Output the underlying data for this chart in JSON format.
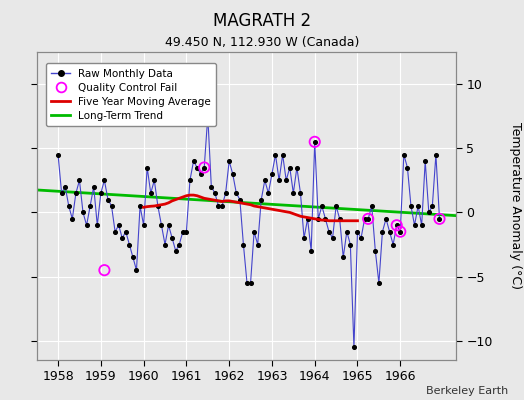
{
  "title": "MAGRATH 2",
  "subtitle": "49.450 N, 112.930 W (Canada)",
  "credit": "Berkeley Earth",
  "ylabel": "Temperature Anomaly (°C)",
  "xlim": [
    1957.5,
    1967.3
  ],
  "ylim": [
    -11.5,
    12.5
  ],
  "yticks": [
    -10,
    -5,
    0,
    5,
    10
  ],
  "xticks": [
    1958,
    1959,
    1960,
    1961,
    1962,
    1963,
    1964,
    1965,
    1966
  ],
  "bg_color": "#e8e8e8",
  "plot_bg_color": "#e8e8e8",
  "raw_color": "#4444cc",
  "dot_color": "#000000",
  "ma_color": "#dd0000",
  "trend_color": "#00bb00",
  "qc_color": "#ff00ff",
  "grid_color": "#ffffff",
  "raw_data_x": [
    1958.0,
    1958.083,
    1958.167,
    1958.25,
    1958.333,
    1958.417,
    1958.5,
    1958.583,
    1958.667,
    1958.75,
    1958.833,
    1958.917,
    1959.0,
    1959.083,
    1959.167,
    1959.25,
    1959.333,
    1959.417,
    1959.5,
    1959.583,
    1959.667,
    1959.75,
    1959.833,
    1959.917,
    1960.0,
    1960.083,
    1960.167,
    1960.25,
    1960.333,
    1960.417,
    1960.5,
    1960.583,
    1960.667,
    1960.75,
    1960.833,
    1960.917,
    1961.0,
    1961.083,
    1961.167,
    1961.25,
    1961.333,
    1961.417,
    1961.5,
    1961.583,
    1961.667,
    1961.75,
    1961.833,
    1961.917,
    1962.0,
    1962.083,
    1962.167,
    1962.25,
    1962.333,
    1962.417,
    1962.5,
    1962.583,
    1962.667,
    1962.75,
    1962.833,
    1962.917,
    1963.0,
    1963.083,
    1963.167,
    1963.25,
    1963.333,
    1963.417,
    1963.5,
    1963.583,
    1963.667,
    1963.75,
    1963.833,
    1963.917,
    1964.0,
    1964.083,
    1964.167,
    1964.25,
    1964.333,
    1964.417,
    1964.5,
    1964.583,
    1964.667,
    1964.75,
    1964.833,
    1964.917,
    1965.0,
    1965.083,
    1965.167,
    1965.25,
    1965.333,
    1965.417,
    1965.5,
    1965.583,
    1965.667,
    1965.75,
    1965.833,
    1965.917,
    1966.0,
    1966.083,
    1966.167,
    1966.25,
    1966.333,
    1966.417,
    1966.5,
    1966.583,
    1966.667,
    1966.75,
    1966.833,
    1966.917
  ],
  "raw_data_y": [
    4.5,
    1.5,
    2.0,
    0.5,
    -0.5,
    1.5,
    2.5,
    0.0,
    -1.0,
    0.5,
    2.0,
    -1.0,
    1.5,
    2.5,
    1.0,
    0.5,
    -1.5,
    -1.0,
    -2.0,
    -1.5,
    -2.5,
    -3.5,
    -4.5,
    0.5,
    -1.0,
    3.5,
    1.5,
    2.5,
    0.5,
    -1.0,
    -2.5,
    -1.0,
    -2.0,
    -3.0,
    -2.5,
    -1.5,
    -1.5,
    2.5,
    4.0,
    3.5,
    3.0,
    3.5,
    7.5,
    2.0,
    1.5,
    0.5,
    0.5,
    1.5,
    4.0,
    3.0,
    1.5,
    1.0,
    -2.5,
    -5.5,
    -5.5,
    -1.5,
    -2.5,
    1.0,
    2.5,
    1.5,
    3.0,
    4.5,
    2.5,
    4.5,
    2.5,
    3.5,
    1.5,
    3.5,
    1.5,
    -2.0,
    -0.5,
    -3.0,
    5.5,
    -0.5,
    0.5,
    -0.5,
    -1.5,
    -2.0,
    0.5,
    -0.5,
    -3.5,
    -1.5,
    -2.5,
    -10.5,
    -1.5,
    -2.0,
    -0.5,
    -0.5,
    0.5,
    -3.0,
    -5.5,
    -1.5,
    -0.5,
    -1.5,
    -2.5,
    -1.0,
    -1.5,
    4.5,
    3.5,
    0.5,
    -1.0,
    0.5,
    -1.0,
    4.0,
    0.0,
    0.5,
    4.5,
    -0.5
  ],
  "qc_fail_x": [
    1959.083,
    1961.417,
    1964.0,
    1965.25,
    1965.917,
    1966.0,
    1966.917
  ],
  "qc_fail_y": [
    -4.5,
    3.5,
    5.5,
    -0.5,
    -1.0,
    -1.5,
    -0.5
  ],
  "moving_avg_x": [
    1960.0,
    1960.083,
    1960.167,
    1960.25,
    1960.333,
    1960.417,
    1960.5,
    1960.583,
    1960.667,
    1960.75,
    1960.833,
    1960.917,
    1961.0,
    1961.083,
    1961.167,
    1961.25,
    1961.333,
    1961.417,
    1961.5,
    1961.583,
    1961.667,
    1961.75,
    1961.833,
    1961.917,
    1962.0,
    1962.083,
    1962.167,
    1962.25,
    1962.333,
    1962.417,
    1962.5,
    1962.583,
    1962.667,
    1962.75,
    1962.833,
    1962.917,
    1963.0,
    1963.083,
    1963.167,
    1963.25,
    1963.333,
    1963.417,
    1963.5,
    1963.583,
    1963.667,
    1963.75,
    1963.833,
    1963.917,
    1964.0,
    1964.083,
    1964.167,
    1964.25,
    1964.333,
    1964.417,
    1964.5,
    1964.583,
    1964.667,
    1964.75,
    1964.833,
    1964.917,
    1965.0
  ],
  "moving_avg_y": [
    0.4,
    0.45,
    0.48,
    0.5,
    0.55,
    0.6,
    0.65,
    0.75,
    0.9,
    1.0,
    1.1,
    1.2,
    1.3,
    1.35,
    1.35,
    1.3,
    1.2,
    1.1,
    1.05,
    1.0,
    0.95,
    0.9,
    0.85,
    0.9,
    0.9,
    0.85,
    0.8,
    0.75,
    0.7,
    0.65,
    0.6,
    0.5,
    0.45,
    0.4,
    0.35,
    0.3,
    0.25,
    0.2,
    0.15,
    0.1,
    0.05,
    0.0,
    -0.1,
    -0.2,
    -0.3,
    -0.35,
    -0.4,
    -0.45,
    -0.5,
    -0.55,
    -0.6,
    -0.6,
    -0.65,
    -0.65,
    -0.65,
    -0.65,
    -0.65,
    -0.65,
    -0.65,
    -0.65,
    -0.65
  ],
  "trend_x": [
    1957.5,
    1967.3
  ],
  "trend_y": [
    1.75,
    -0.25
  ]
}
